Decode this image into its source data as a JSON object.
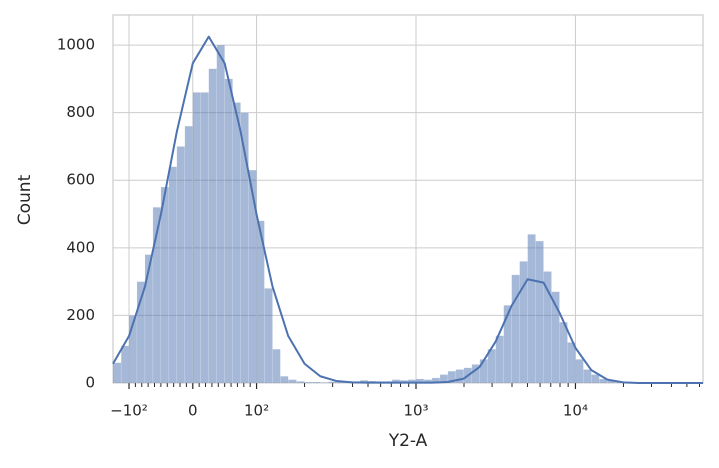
{
  "chart_data": {
    "type": "histogram",
    "xlabel": "Y2-A",
    "ylabel": "Count",
    "xscale": "symlog",
    "bins": [
      -126,
      -112,
      -100,
      -87.5,
      -75,
      -62.5,
      -50,
      -37.5,
      -25,
      -12.5,
      0,
      12.5,
      25,
      37.5,
      50,
      62.5,
      75,
      87.5,
      100,
      112,
      126,
      141,
      158,
      178,
      200,
      224,
      251,
      282,
      316,
      355,
      398,
      447,
      501,
      562,
      631,
      708,
      794,
      891,
      1000,
      1122,
      1259,
      1413,
      1585,
      1778,
      1995,
      2239,
      2512,
      2818,
      3162,
      3548,
      3981,
      4467,
      5012,
      5623,
      6310,
      7079,
      7943,
      8913,
      10000,
      11220,
      12589,
      14125,
      15849,
      17783,
      19953,
      22387,
      25119,
      28184,
      31623,
      35481,
      39811,
      44668,
      50119,
      56234,
      63096
    ],
    "values": [
      60,
      110,
      200,
      300,
      380,
      520,
      580,
      640,
      700,
      760,
      860,
      860,
      930,
      1000,
      900,
      830,
      800,
      630,
      480,
      280,
      100,
      20,
      10,
      5,
      3,
      3,
      2,
      4,
      5,
      5,
      5,
      8,
      6,
      5,
      5,
      10,
      8,
      10,
      12,
      10,
      15,
      25,
      35,
      40,
      45,
      55,
      70,
      100,
      140,
      230,
      320,
      360,
      440,
      420,
      330,
      270,
      180,
      120,
      70,
      40,
      25,
      12,
      6,
      3,
      2,
      2,
      1,
      1,
      1,
      1,
      0,
      0,
      0,
      0
    ],
    "color": "#4c72b0",
    "kde": {
      "x": [
        -126,
        -100,
        -75,
        -50,
        -25,
        0,
        25,
        50,
        75,
        100,
        126,
        158,
        200,
        251,
        316,
        398,
        501,
        631,
        794,
        1000,
        1259,
        1585,
        1995,
        2512,
        3162,
        3981,
        5012,
        6310,
        7943,
        10000,
        12589,
        15849,
        19953,
        25119,
        31623,
        39811,
        50119,
        63096
      ],
      "values": [
        57,
        139,
        285,
        499,
        744,
        946,
        1025,
        946,
        744,
        499,
        285,
        139,
        57,
        20,
        6,
        2,
        1,
        1,
        1,
        1,
        1,
        3,
        13,
        48,
        123,
        229,
        307,
        297,
        208,
        104,
        38,
        10,
        2,
        0,
        0,
        0,
        0,
        0
      ]
    },
    "xlim": [
      -126,
      63096
    ],
    "xticks": [
      {
        "value": -100,
        "label": "−10²"
      },
      0,
      {
        "value": 100,
        "label": "10²"
      },
      {
        "value": 1000,
        "label": "10³"
      },
      {
        "value": 10000,
        "label": "10⁴"
      }
    ],
    "xminorticks": [
      -90,
      -80,
      -70,
      -60,
      -50,
      -40,
      -30,
      -20,
      -10,
      10,
      20,
      30,
      40,
      50,
      60,
      70,
      80,
      90,
      200,
      300,
      400,
      500,
      600,
      700,
      800,
      900,
      2000,
      3000,
      4000,
      5000,
      6000,
      7000,
      8000,
      9000,
      20000,
      30000,
      40000,
      50000,
      60000
    ],
    "ylim": [
      0,
      1089
    ],
    "yticks": [
      0,
      200,
      400,
      600,
      800,
      1000
    ],
    "grid": true
  }
}
